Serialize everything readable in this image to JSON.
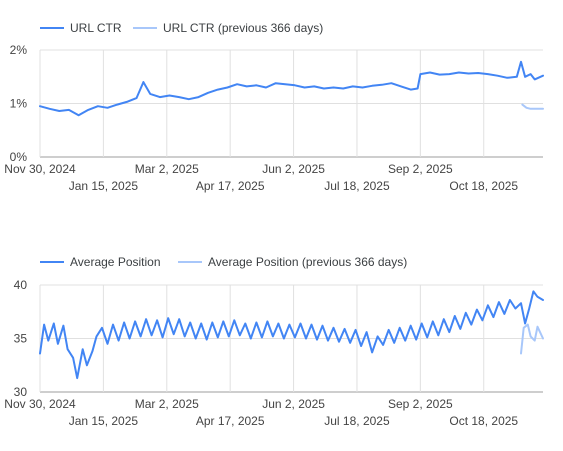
{
  "colors": {
    "current": "#4285f4",
    "previous": "#a8c7fa",
    "grid": "#e0e0e0",
    "axis": "#9e9e9e"
  },
  "chart_data": [
    {
      "type": "line",
      "title": "",
      "xlabel": "",
      "ylabel": "",
      "legend_position": "top-left",
      "grid": true,
      "x_range": [
        "2024-11-30",
        "2025-11-30"
      ],
      "ylim": [
        0,
        2
      ],
      "y_ticks": [
        0,
        1,
        2
      ],
      "y_tick_labels": [
        "0%",
        "1%",
        "2%"
      ],
      "x_ticks": [
        "2024-11-30",
        "2025-01-15",
        "2025-03-02",
        "2025-04-17",
        "2025-06-02",
        "2025-07-18",
        "2025-09-02",
        "2025-10-18"
      ],
      "x_tick_labels": [
        "Nov 30, 2024",
        "Jan 15, 2025",
        "Mar 2, 2025",
        "Apr 17, 2025",
        "Jun 2, 2025",
        "Jul 18, 2025",
        "Sep 2, 2025",
        "Oct 18, 2025"
      ],
      "series": [
        {
          "name": "URL CTR",
          "color": "#4285f4",
          "points": [
            [
              "2024-11-30",
              0.95
            ],
            [
              "2024-12-07",
              0.9
            ],
            [
              "2024-12-14",
              0.86
            ],
            [
              "2024-12-21",
              0.88
            ],
            [
              "2024-12-28",
              0.78
            ],
            [
              "2025-01-04",
              0.88
            ],
            [
              "2025-01-11",
              0.95
            ],
            [
              "2025-01-18",
              0.92
            ],
            [
              "2025-01-25",
              0.98
            ],
            [
              "2025-02-01",
              1.03
            ],
            [
              "2025-02-08",
              1.1
            ],
            [
              "2025-02-13",
              1.4
            ],
            [
              "2025-02-18",
              1.18
            ],
            [
              "2025-02-25",
              1.12
            ],
            [
              "2025-03-04",
              1.15
            ],
            [
              "2025-03-11",
              1.12
            ],
            [
              "2025-03-18",
              1.08
            ],
            [
              "2025-03-25",
              1.12
            ],
            [
              "2025-04-01",
              1.2
            ],
            [
              "2025-04-08",
              1.26
            ],
            [
              "2025-04-15",
              1.3
            ],
            [
              "2025-04-22",
              1.36
            ],
            [
              "2025-04-29",
              1.32
            ],
            [
              "2025-05-06",
              1.34
            ],
            [
              "2025-05-13",
              1.3
            ],
            [
              "2025-05-20",
              1.38
            ],
            [
              "2025-05-27",
              1.36
            ],
            [
              "2025-06-03",
              1.34
            ],
            [
              "2025-06-10",
              1.3
            ],
            [
              "2025-06-17",
              1.32
            ],
            [
              "2025-06-24",
              1.28
            ],
            [
              "2025-07-01",
              1.3
            ],
            [
              "2025-07-08",
              1.28
            ],
            [
              "2025-07-15",
              1.32
            ],
            [
              "2025-07-22",
              1.3
            ],
            [
              "2025-07-29",
              1.33
            ],
            [
              "2025-08-05",
              1.35
            ],
            [
              "2025-08-12",
              1.38
            ],
            [
              "2025-08-19",
              1.32
            ],
            [
              "2025-08-26",
              1.26
            ],
            [
              "2025-08-31",
              1.28
            ],
            [
              "2025-09-02",
              1.55
            ],
            [
              "2025-09-09",
              1.58
            ],
            [
              "2025-09-16",
              1.54
            ],
            [
              "2025-09-23",
              1.55
            ],
            [
              "2025-09-30",
              1.58
            ],
            [
              "2025-10-07",
              1.56
            ],
            [
              "2025-10-14",
              1.57
            ],
            [
              "2025-10-21",
              1.55
            ],
            [
              "2025-10-28",
              1.52
            ],
            [
              "2025-11-04",
              1.48
            ],
            [
              "2025-11-11",
              1.5
            ],
            [
              "2025-11-14",
              1.78
            ],
            [
              "2025-11-17",
              1.5
            ],
            [
              "2025-11-21",
              1.55
            ],
            [
              "2025-11-24",
              1.45
            ],
            [
              "2025-11-30",
              1.52
            ]
          ]
        },
        {
          "name": "URL CTR (previous 366 days)",
          "color": "#a8c7fa",
          "points": [
            [
              "2025-11-15",
              0.98
            ],
            [
              "2025-11-18",
              0.92
            ],
            [
              "2025-11-21",
              0.9
            ],
            [
              "2025-11-24",
              0.9
            ],
            [
              "2025-11-30",
              0.9
            ]
          ]
        }
      ]
    },
    {
      "type": "line",
      "title": "",
      "xlabel": "",
      "ylabel": "",
      "legend_position": "top-left",
      "grid": true,
      "x_range": [
        "2024-11-30",
        "2025-11-30"
      ],
      "ylim": [
        30,
        40
      ],
      "y_ticks": [
        30,
        35,
        40
      ],
      "y_tick_labels": [
        "30",
        "35",
        "40"
      ],
      "x_ticks": [
        "2024-11-30",
        "2025-01-15",
        "2025-03-02",
        "2025-04-17",
        "2025-06-02",
        "2025-07-18",
        "2025-09-02",
        "2025-10-18"
      ],
      "x_tick_labels": [
        "Nov 30, 2024",
        "Jan 15, 2025",
        "Mar 2, 2025",
        "Apr 17, 2025",
        "Jun 2, 2025",
        "Jul 18, 2025",
        "Sep 2, 2025",
        "Oct 18, 2025"
      ],
      "series": [
        {
          "name": "Average Position",
          "color": "#4285f4",
          "points": [
            [
              "2024-11-30",
              33.6
            ],
            [
              "2024-12-03",
              36.3
            ],
            [
              "2024-12-06",
              34.8
            ],
            [
              "2024-12-10",
              36.4
            ],
            [
              "2024-12-13",
              34.5
            ],
            [
              "2024-12-17",
              36.2
            ],
            [
              "2024-12-20",
              34.0
            ],
            [
              "2024-12-24",
              33.2
            ],
            [
              "2024-12-27",
              31.3
            ],
            [
              "2024-12-31",
              34.0
            ],
            [
              "2025-01-03",
              32.5
            ],
            [
              "2025-01-07",
              33.8
            ],
            [
              "2025-01-10",
              35.2
            ],
            [
              "2025-01-14",
              36.0
            ],
            [
              "2025-01-18",
              34.5
            ],
            [
              "2025-01-22",
              36.3
            ],
            [
              "2025-01-26",
              34.8
            ],
            [
              "2025-01-30",
              36.5
            ],
            [
              "2025-02-03",
              35.0
            ],
            [
              "2025-02-07",
              36.6
            ],
            [
              "2025-02-11",
              35.2
            ],
            [
              "2025-02-15",
              36.8
            ],
            [
              "2025-02-19",
              35.3
            ],
            [
              "2025-02-23",
              36.7
            ],
            [
              "2025-02-27",
              35.1
            ],
            [
              "2025-03-03",
              36.9
            ],
            [
              "2025-03-07",
              35.4
            ],
            [
              "2025-03-11",
              36.8
            ],
            [
              "2025-03-15",
              35.2
            ],
            [
              "2025-03-19",
              36.5
            ],
            [
              "2025-03-23",
              35.0
            ],
            [
              "2025-03-27",
              36.4
            ],
            [
              "2025-03-31",
              34.9
            ],
            [
              "2025-04-04",
              36.5
            ],
            [
              "2025-04-08",
              35.1
            ],
            [
              "2025-04-12",
              36.6
            ],
            [
              "2025-04-16",
              35.2
            ],
            [
              "2025-04-20",
              36.7
            ],
            [
              "2025-04-24",
              35.3
            ],
            [
              "2025-04-28",
              36.4
            ],
            [
              "2025-05-02",
              35.0
            ],
            [
              "2025-05-06",
              36.5
            ],
            [
              "2025-05-10",
              35.1
            ],
            [
              "2025-05-14",
              36.6
            ],
            [
              "2025-05-18",
              35.2
            ],
            [
              "2025-05-22",
              36.4
            ],
            [
              "2025-05-26",
              35.0
            ],
            [
              "2025-05-30",
              36.3
            ],
            [
              "2025-06-03",
              35.1
            ],
            [
              "2025-06-07",
              36.4
            ],
            [
              "2025-06-11",
              35.0
            ],
            [
              "2025-06-15",
              36.3
            ],
            [
              "2025-06-19",
              34.9
            ],
            [
              "2025-06-23",
              36.2
            ],
            [
              "2025-06-27",
              34.8
            ],
            [
              "2025-07-01",
              36.0
            ],
            [
              "2025-07-05",
              34.7
            ],
            [
              "2025-07-09",
              35.9
            ],
            [
              "2025-07-13",
              34.6
            ],
            [
              "2025-07-17",
              35.8
            ],
            [
              "2025-07-21",
              34.3
            ],
            [
              "2025-07-25",
              35.6
            ],
            [
              "2025-07-29",
              33.7
            ],
            [
              "2025-08-02",
              35.2
            ],
            [
              "2025-08-06",
              34.4
            ],
            [
              "2025-08-10",
              35.8
            ],
            [
              "2025-08-14",
              34.6
            ],
            [
              "2025-08-18",
              36.0
            ],
            [
              "2025-08-22",
              34.8
            ],
            [
              "2025-08-26",
              36.2
            ],
            [
              "2025-08-30",
              34.9
            ],
            [
              "2025-09-03",
              36.4
            ],
            [
              "2025-09-07",
              35.1
            ],
            [
              "2025-09-11",
              36.6
            ],
            [
              "2025-09-15",
              35.3
            ],
            [
              "2025-09-19",
              36.8
            ],
            [
              "2025-09-23",
              35.6
            ],
            [
              "2025-09-27",
              37.1
            ],
            [
              "2025-10-01",
              35.9
            ],
            [
              "2025-10-05",
              37.4
            ],
            [
              "2025-10-09",
              36.3
            ],
            [
              "2025-10-13",
              37.7
            ],
            [
              "2025-10-17",
              36.7
            ],
            [
              "2025-10-21",
              38.1
            ],
            [
              "2025-10-25",
              37.0
            ],
            [
              "2025-10-29",
              38.4
            ],
            [
              "2025-11-02",
              37.3
            ],
            [
              "2025-11-06",
              38.6
            ],
            [
              "2025-11-10",
              37.8
            ],
            [
              "2025-11-14",
              38.3
            ],
            [
              "2025-11-17",
              36.4
            ],
            [
              "2025-11-20",
              37.8
            ],
            [
              "2025-11-23",
              39.4
            ],
            [
              "2025-11-26",
              38.9
            ],
            [
              "2025-11-30",
              38.6
            ]
          ]
        },
        {
          "name": "Average Position (previous 366 days)",
          "color": "#a8c7fa",
          "points": [
            [
              "2025-11-14",
              33.6
            ],
            [
              "2025-11-16",
              36.0
            ],
            [
              "2025-11-19",
              36.3
            ],
            [
              "2025-11-21",
              35.2
            ],
            [
              "2025-11-24",
              34.8
            ],
            [
              "2025-11-26",
              36.1
            ],
            [
              "2025-11-30",
              35.0
            ]
          ]
        }
      ]
    }
  ]
}
